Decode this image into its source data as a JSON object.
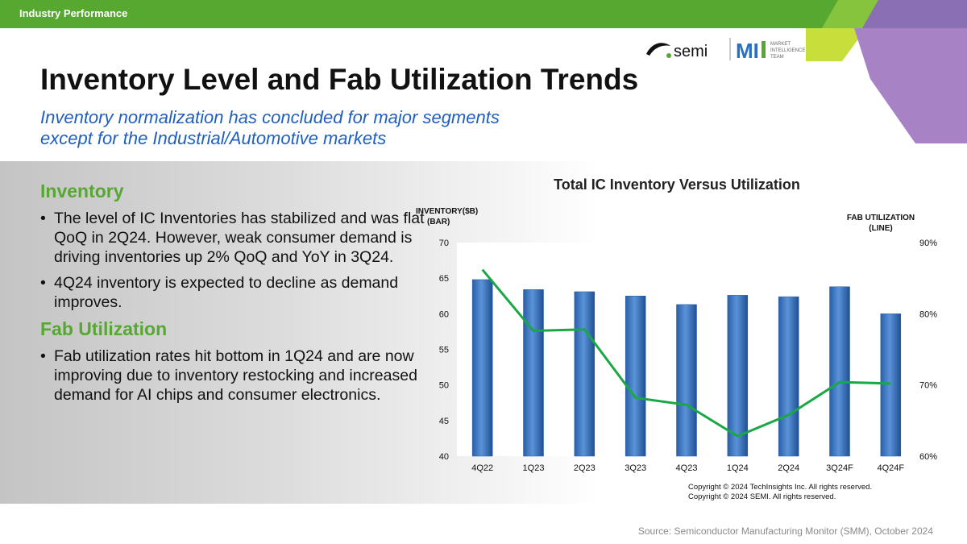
{
  "header": {
    "section_label": "Industry Performance"
  },
  "logo": {
    "brand_text": "semi",
    "mit_text": "MI",
    "team_lines": [
      "MARKET",
      "INTELLIGENCE",
      "TEAM"
    ]
  },
  "slide": {
    "title": "Inventory Level and Fab Utilization Trends",
    "subtitle_lines": [
      "Inventory normalization has concluded for major segments",
      "except for the Industrial/Automotive markets"
    ]
  },
  "sections": [
    {
      "heading": "Inventory",
      "bullets": [
        "The level of IC Inventories has stabilized and was flat QoQ in 2Q24. However, weak consumer demand is driving inventories up 2% QoQ and YoY in 3Q24.",
        "4Q24 inventory is expected to decline as demand improves."
      ]
    },
    {
      "heading": "Fab Utilization",
      "bullets": [
        "Fab utilization rates hit bottom in 1Q24 and are now improving due to inventory restocking and increased demand for AI chips and consumer electronics."
      ]
    }
  ],
  "chart_data": {
    "type": "bar",
    "title": "Total IC Inventory Versus Utilization",
    "categories": [
      "4Q22",
      "1Q23",
      "2Q23",
      "3Q23",
      "4Q23",
      "1Q24",
      "2Q24",
      "3Q24F",
      "4Q24F"
    ],
    "ylabel_left_lines": [
      "INVENTORY($B)",
      "(BAR)"
    ],
    "ylabel_right_lines": [
      "FAB UTILIZATION",
      "(LINE)"
    ],
    "ylim": [
      40,
      70
    ],
    "yticks": [
      40,
      45,
      50,
      55,
      60,
      65,
      70
    ],
    "y2lim": [
      60,
      90
    ],
    "y2ticks": [
      "60%",
      "70%",
      "80%",
      "90%"
    ],
    "y2tick_values": [
      60,
      70,
      80,
      90
    ],
    "series": [
      {
        "type": "bar",
        "axis": "left",
        "color": "#3a75c4",
        "values": [
          64.8,
          63.4,
          63.1,
          62.5,
          61.3,
          62.6,
          62.4,
          63.8,
          60.0
        ]
      },
      {
        "type": "line",
        "axis": "right",
        "color": "#1aa846",
        "values": [
          86.2,
          77.6,
          77.8,
          68.2,
          67.2,
          62.8,
          65.8,
          70.4,
          70.2
        ]
      }
    ],
    "grid": false,
    "copyright_lines": [
      "Copyright © 2024 TechInsights Inc.  All rights reserved.",
      "Copyright © 2024 SEMI.  All rights reserved."
    ]
  },
  "footer": {
    "source": "Source:  Semiconductor Manufacturing Monitor (SMM), October 2024"
  }
}
